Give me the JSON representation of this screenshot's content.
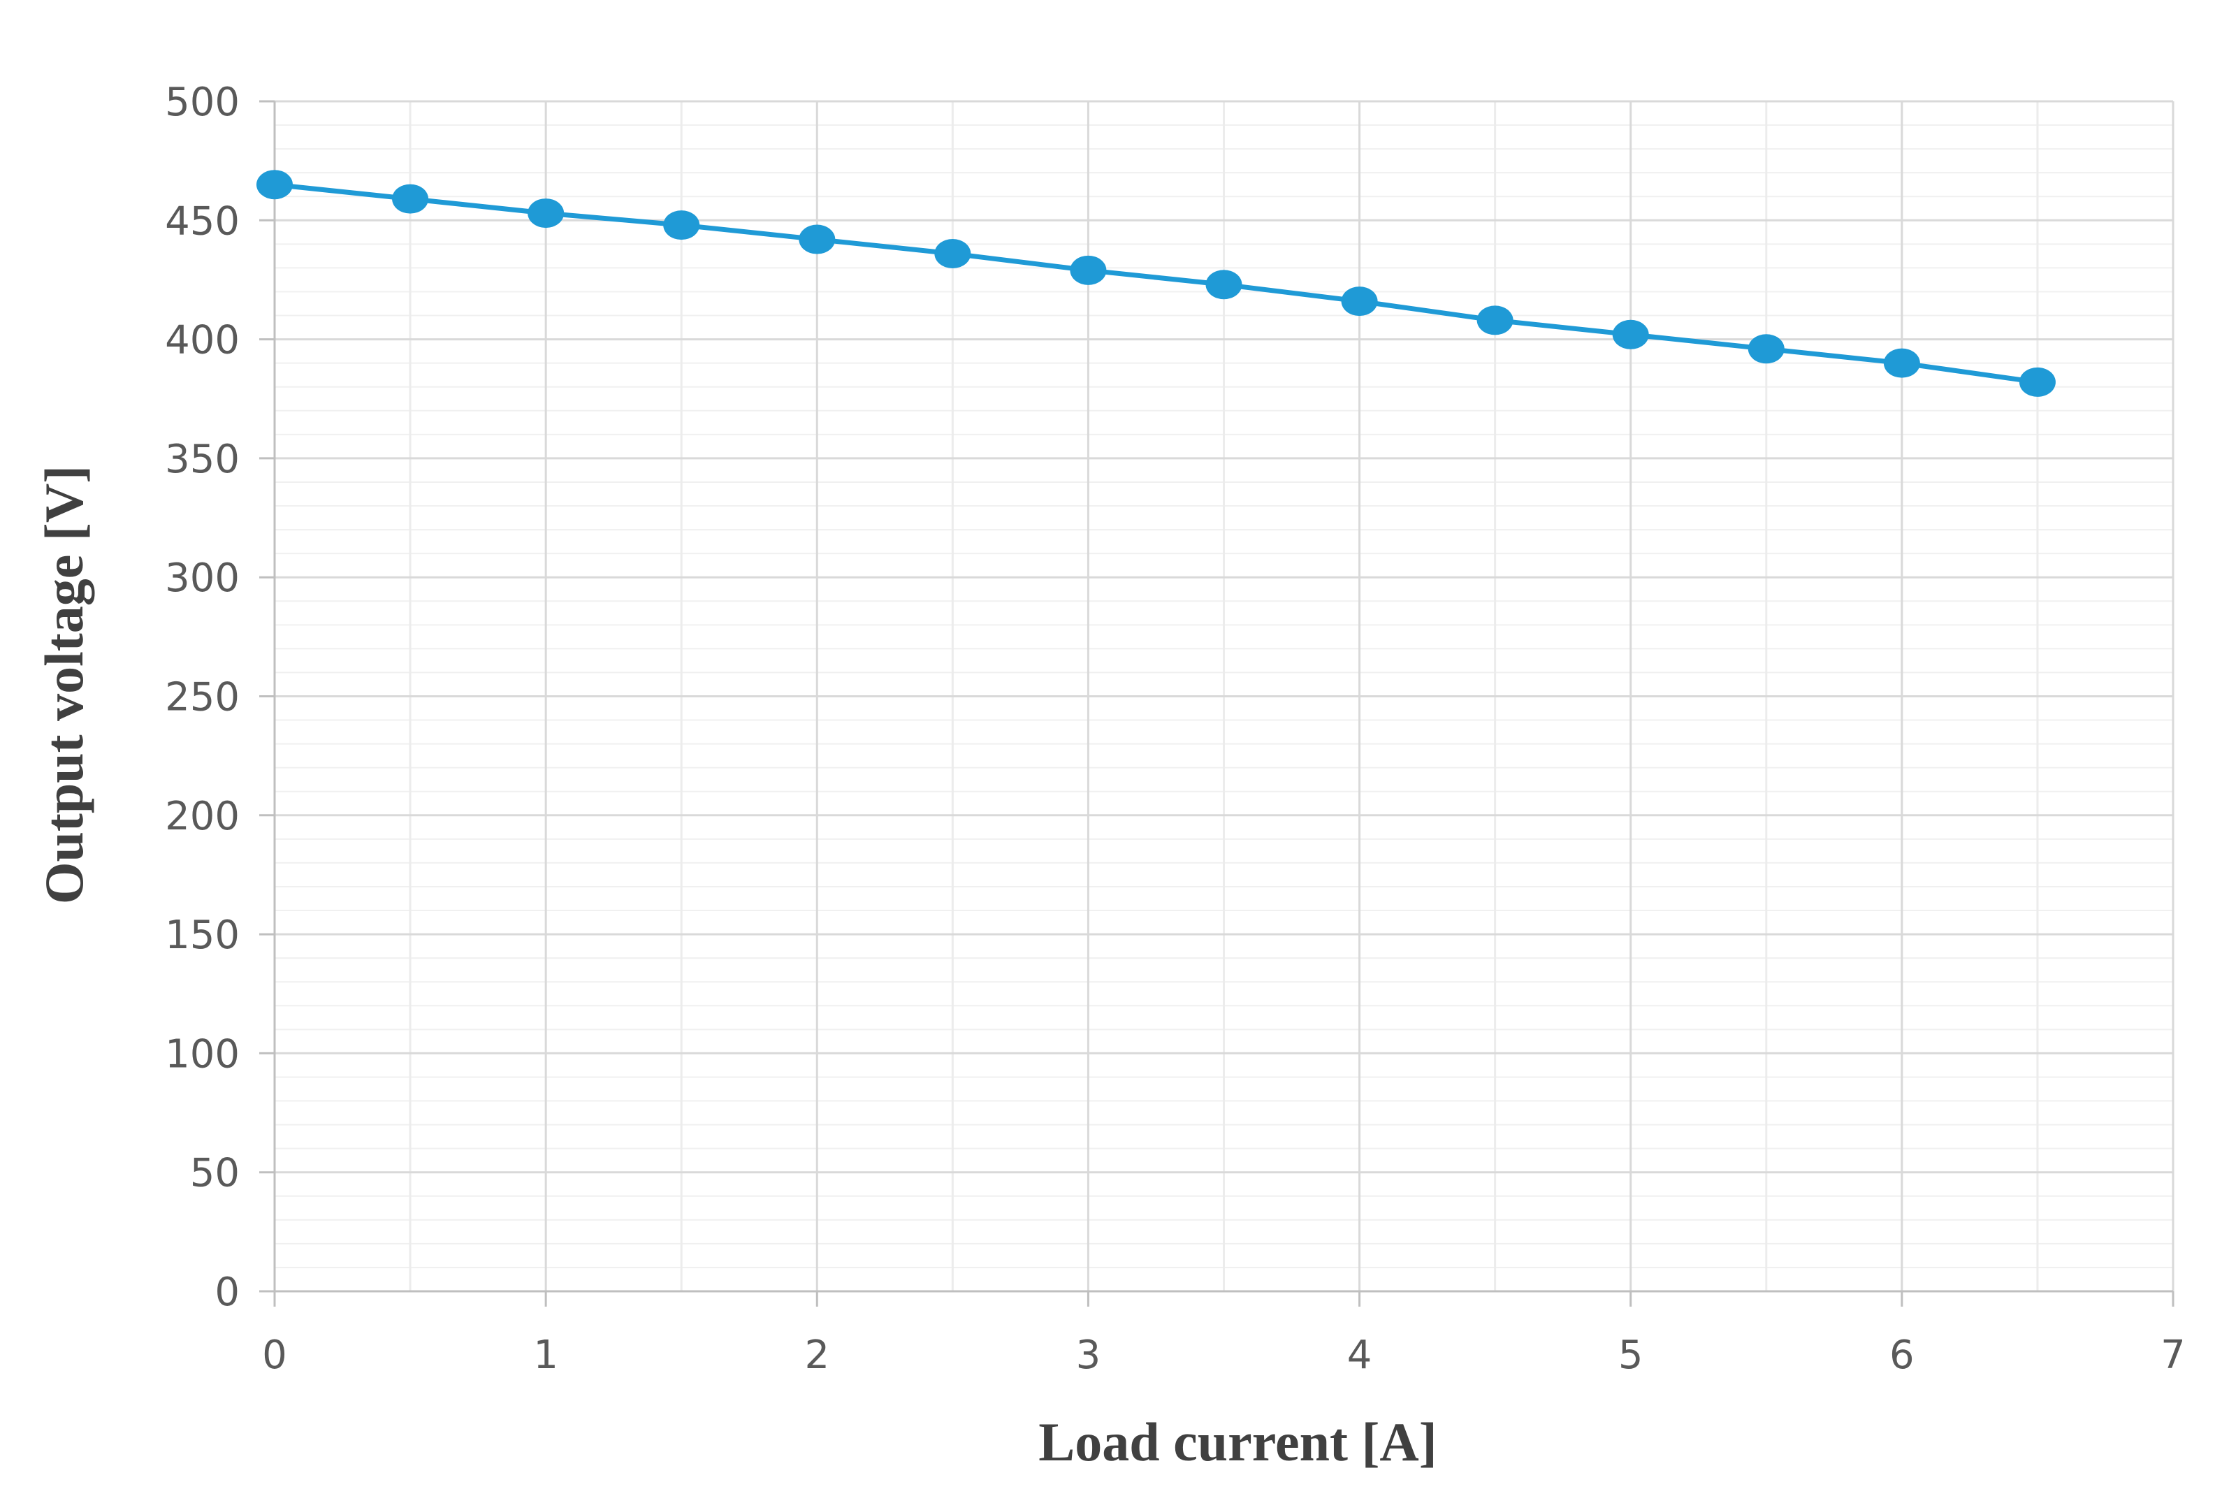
{
  "chart_data": {
    "type": "line",
    "title": "",
    "xlabel": "Load current [A]",
    "ylabel": "Output voltage [V]",
    "xlim": [
      0,
      7
    ],
    "ylim": [
      0,
      500
    ],
    "xticks": [
      0,
      1,
      2,
      3,
      4,
      5,
      6,
      7
    ],
    "yticks": [
      0,
      50,
      100,
      150,
      200,
      250,
      300,
      350,
      400,
      450,
      500
    ],
    "grid": true,
    "legend": "none",
    "series": [
      {
        "color": "#1f9ad6",
        "marker": "circle",
        "x": [
          0,
          0.5,
          1,
          1.5,
          2,
          2.5,
          3,
          3.5,
          4,
          4.5,
          5,
          5.5,
          6,
          6.5
        ],
        "y": [
          465,
          459,
          453,
          448,
          442,
          436,
          429,
          423,
          416,
          408,
          402,
          396,
          390,
          382
        ]
      }
    ]
  }
}
